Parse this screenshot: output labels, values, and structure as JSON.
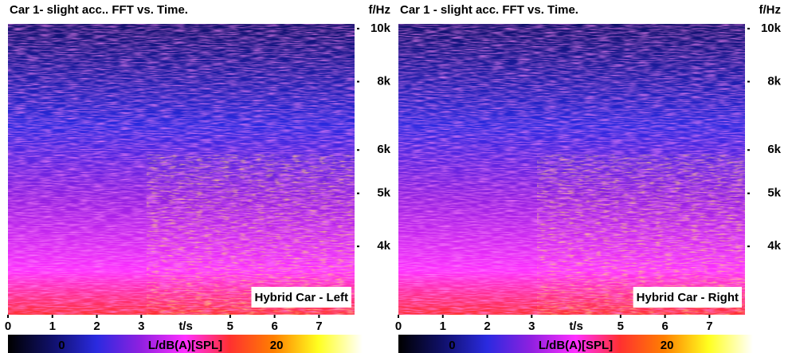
{
  "chart_data": [
    {
      "type": "spectrogram",
      "title": "Car 1- slight acc.. FFT vs. Time.",
      "xlabel": "t/s",
      "ylabel": "f/Hz",
      "annotation": "Hybrid Car - Left",
      "xlim": [
        0,
        7.8
      ],
      "xticks": [
        0,
        1,
        2,
        3,
        5,
        6,
        7
      ],
      "ylim": [
        3000,
        10200
      ],
      "log_y": true,
      "yticks": [
        {
          "value": 4000,
          "label": "4k"
        },
        {
          "value": 5000,
          "label": "5k"
        },
        {
          "value": 6000,
          "label": "6k"
        },
        {
          "value": 8000,
          "label": "8k"
        },
        {
          "value": 10000,
          "label": "10k"
        }
      ],
      "colorbar": {
        "label": "L/dB(A)[SPL]",
        "lim": [
          -5,
          28
        ],
        "ticks": [
          0,
          20
        ],
        "colors": [
          "#000000",
          "#10106a",
          "#2a2ae0",
          "#9020e0",
          "#ff30ff",
          "#ff3030",
          "#ff8000",
          "#ffff20",
          "#ffffff"
        ]
      }
    },
    {
      "type": "spectrogram",
      "title": "Car 1 - slight acc. FFT vs. Time.",
      "xlabel": "t/s",
      "ylabel": "f/Hz",
      "annotation": "Hybrid Car - Right",
      "xlim": [
        0,
        7.8
      ],
      "xticks": [
        0,
        1,
        2,
        3,
        5,
        6,
        7
      ],
      "ylim": [
        3000,
        10200
      ],
      "log_y": true,
      "yticks": [
        {
          "value": 4000,
          "label": "4k"
        },
        {
          "value": 5000,
          "label": "5k"
        },
        {
          "value": 6000,
          "label": "6k"
        },
        {
          "value": 8000,
          "label": "8k"
        },
        {
          "value": 10000,
          "label": "10k"
        }
      ],
      "colorbar": {
        "label": "L/dB(A)[SPL]",
        "lim": [
          -5,
          28
        ],
        "ticks": [
          0,
          20
        ],
        "colors": [
          "#000000",
          "#10106a",
          "#2a2ae0",
          "#9020e0",
          "#ff30ff",
          "#ff3030",
          "#ff8000",
          "#ffff20",
          "#ffffff"
        ]
      }
    }
  ]
}
